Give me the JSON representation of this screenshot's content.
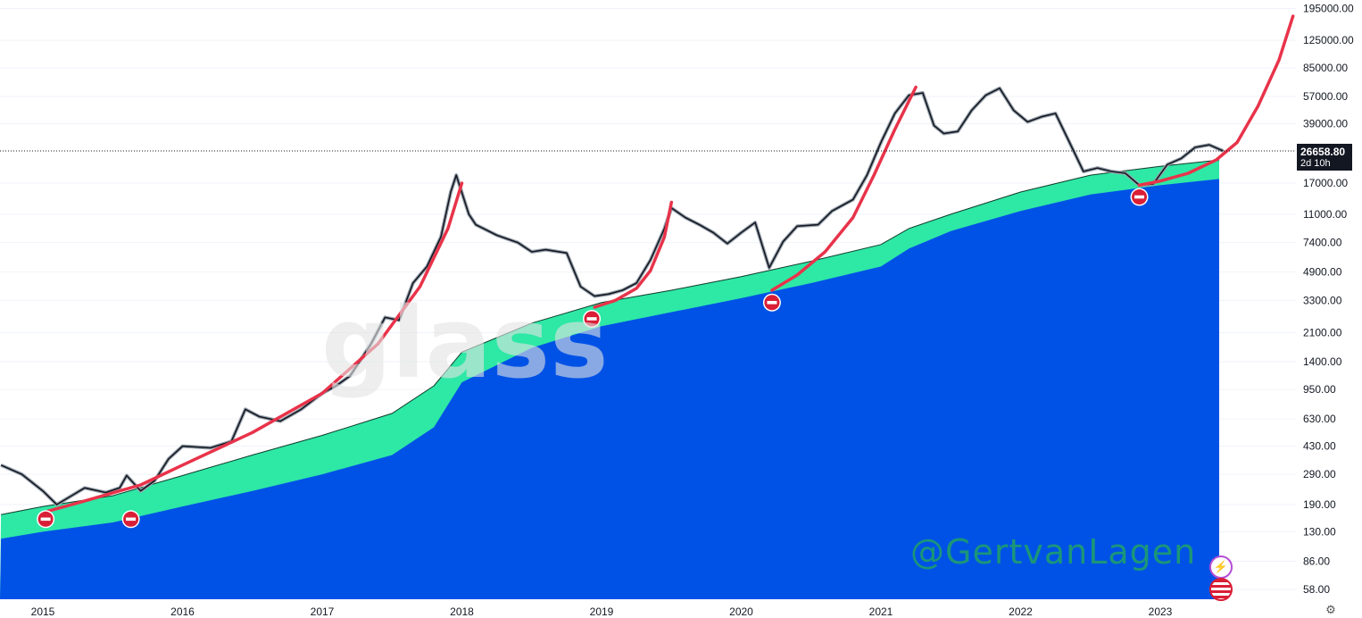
{
  "chart_data": {
    "type": "line",
    "y_scale": "log",
    "y_ticks": [
      "195000.00",
      "125000.00",
      "85000.00",
      "57000.00",
      "39000.00",
      "17000.00",
      "11000.00",
      "7400.00",
      "4900.00",
      "3300.00",
      "2100.00",
      "1400.00",
      "950.00",
      "630.00",
      "430.00",
      "290.00",
      "190.00",
      "130.00",
      "86.00",
      "58.00"
    ],
    "x_ticks": [
      "2015",
      "2016",
      "2017",
      "2018",
      "2019",
      "2020",
      "2021",
      "2022",
      "2023"
    ],
    "last_price": "26658.80",
    "last_price_sub": "2d 10h",
    "series": [
      {
        "type": "price",
        "color": "#131722",
        "points": [
          [
            2014.7,
            330
          ],
          [
            2014.85,
            290
          ],
          [
            2015.0,
            230
          ],
          [
            2015.1,
            190
          ],
          [
            2015.3,
            240
          ],
          [
            2015.45,
            225
          ],
          [
            2015.55,
            240
          ],
          [
            2015.6,
            285
          ],
          [
            2015.7,
            230
          ],
          [
            2015.8,
            265
          ],
          [
            2015.9,
            360
          ],
          [
            2016.0,
            430
          ],
          [
            2016.2,
            420
          ],
          [
            2016.35,
            460
          ],
          [
            2016.45,
            720
          ],
          [
            2016.55,
            650
          ],
          [
            2016.7,
            610
          ],
          [
            2016.85,
            720
          ],
          [
            2017.0,
            900
          ],
          [
            2017.1,
            1000
          ],
          [
            2017.2,
            1150
          ],
          [
            2017.35,
            1800
          ],
          [
            2017.45,
            2600
          ],
          [
            2017.55,
            2500
          ],
          [
            2017.65,
            4200
          ],
          [
            2017.75,
            5300
          ],
          [
            2017.85,
            8000
          ],
          [
            2017.92,
            15000
          ],
          [
            2017.96,
            19000
          ],
          [
            2018.05,
            11000
          ],
          [
            2018.1,
            9500
          ],
          [
            2018.25,
            8200
          ],
          [
            2018.4,
            7400
          ],
          [
            2018.5,
            6500
          ],
          [
            2018.6,
            6700
          ],
          [
            2018.75,
            6400
          ],
          [
            2018.85,
            4000
          ],
          [
            2018.95,
            3500
          ],
          [
            2019.05,
            3600
          ],
          [
            2019.15,
            3800
          ],
          [
            2019.25,
            4200
          ],
          [
            2019.35,
            5800
          ],
          [
            2019.45,
            9000
          ],
          [
            2019.5,
            12000
          ],
          [
            2019.6,
            10500
          ],
          [
            2019.7,
            9500
          ],
          [
            2019.8,
            8500
          ],
          [
            2019.9,
            7300
          ],
          [
            2020.0,
            8500
          ],
          [
            2020.1,
            9800
          ],
          [
            2020.2,
            5200
          ],
          [
            2020.3,
            7500
          ],
          [
            2020.4,
            9300
          ],
          [
            2020.55,
            9500
          ],
          [
            2020.65,
            11500
          ],
          [
            2020.8,
            13500
          ],
          [
            2020.9,
            19000
          ],
          [
            2021.0,
            30000
          ],
          [
            2021.1,
            45000
          ],
          [
            2021.2,
            58000
          ],
          [
            2021.3,
            60000
          ],
          [
            2021.38,
            38000
          ],
          [
            2021.45,
            34000
          ],
          [
            2021.55,
            35000
          ],
          [
            2021.65,
            47000
          ],
          [
            2021.75,
            58000
          ],
          [
            2021.85,
            64000
          ],
          [
            2021.95,
            47000
          ],
          [
            2022.05,
            40000
          ],
          [
            2022.15,
            43000
          ],
          [
            2022.25,
            45000
          ],
          [
            2022.35,
            30000
          ],
          [
            2022.45,
            20000
          ],
          [
            2022.55,
            21000
          ],
          [
            2022.65,
            20000
          ],
          [
            2022.75,
            19500
          ],
          [
            2022.85,
            16500
          ],
          [
            2022.95,
            16800
          ],
          [
            2023.05,
            22000
          ],
          [
            2023.15,
            24000
          ],
          [
            2023.25,
            28000
          ],
          [
            2023.35,
            29000
          ],
          [
            2023.45,
            26658
          ]
        ]
      },
      {
        "type": "band-upper",
        "color": "#2ee8a5",
        "points": [
          [
            2014.7,
            165
          ],
          [
            2015.0,
            185
          ],
          [
            2015.5,
            215
          ],
          [
            2016.0,
            285
          ],
          [
            2016.5,
            380
          ],
          [
            2017.0,
            500
          ],
          [
            2017.5,
            680
          ],
          [
            2017.8,
            1000
          ],
          [
            2018.0,
            1600
          ],
          [
            2018.5,
            2400
          ],
          [
            2019.0,
            3200
          ],
          [
            2019.5,
            3800
          ],
          [
            2020.0,
            4600
          ],
          [
            2020.5,
            5700
          ],
          [
            2021.0,
            7200
          ],
          [
            2021.2,
            9000
          ],
          [
            2021.5,
            11000
          ],
          [
            2022.0,
            15000
          ],
          [
            2022.5,
            19000
          ],
          [
            2023.0,
            21500
          ],
          [
            2023.45,
            23500
          ]
        ]
      },
      {
        "type": "band-lower",
        "color": "#0052e6",
        "points": [
          [
            2014.7,
            118
          ],
          [
            2015.0,
            130
          ],
          [
            2015.5,
            148
          ],
          [
            2016.0,
            185
          ],
          [
            2016.5,
            230
          ],
          [
            2017.0,
            290
          ],
          [
            2017.5,
            380
          ],
          [
            2017.8,
            560
          ],
          [
            2018.0,
            1050
          ],
          [
            2018.5,
            1700
          ],
          [
            2019.0,
            2300
          ],
          [
            2019.5,
            2800
          ],
          [
            2020.0,
            3400
          ],
          [
            2020.5,
            4200
          ],
          [
            2021.0,
            5300
          ],
          [
            2021.2,
            6800
          ],
          [
            2021.5,
            8700
          ],
          [
            2022.0,
            11500
          ],
          [
            2022.5,
            14500
          ],
          [
            2023.0,
            16500
          ],
          [
            2023.45,
            18000
          ]
        ]
      },
      {
        "type": "curve",
        "color": "#e8334a",
        "points": [
          [
            2015.0,
            170
          ],
          [
            2015.3,
            200
          ],
          [
            2015.7,
            250
          ],
          [
            2016.0,
            330
          ],
          [
            2016.5,
            520
          ],
          [
            2017.0,
            900
          ],
          [
            2017.4,
            1800
          ],
          [
            2017.7,
            4000
          ],
          [
            2017.9,
            9000
          ],
          [
            2018.0,
            17000
          ]
        ]
      },
      {
        "type": "curve",
        "color": "#e8334a",
        "points": [
          [
            2018.95,
            3000
          ],
          [
            2019.1,
            3300
          ],
          [
            2019.25,
            3900
          ],
          [
            2019.35,
            5000
          ],
          [
            2019.45,
            8000
          ],
          [
            2019.5,
            13000
          ]
        ]
      },
      {
        "type": "curve",
        "color": "#e8334a",
        "points": [
          [
            2020.22,
            3800
          ],
          [
            2020.4,
            4700
          ],
          [
            2020.6,
            6500
          ],
          [
            2020.8,
            10500
          ],
          [
            2020.95,
            19000
          ],
          [
            2021.1,
            36000
          ],
          [
            2021.25,
            65000
          ]
        ]
      },
      {
        "type": "curve",
        "color": "#e8334a",
        "points": [
          [
            2022.85,
            16500
          ],
          [
            2023.0,
            17500
          ],
          [
            2023.2,
            19500
          ],
          [
            2023.4,
            23500
          ],
          [
            2023.55,
            30000
          ],
          [
            2023.7,
            50000
          ],
          [
            2023.85,
            95000
          ],
          [
            2023.95,
            185000
          ]
        ]
      }
    ],
    "markers": [
      {
        "x": 2015.02,
        "y": 155,
        "icon": "no-entry-icon"
      },
      {
        "x": 2015.63,
        "y": 155,
        "icon": "no-entry-icon"
      },
      {
        "x": 2018.93,
        "y": 2550,
        "icon": "no-entry-icon"
      },
      {
        "x": 2020.22,
        "y": 3200,
        "icon": "no-entry-icon"
      },
      {
        "x": 2022.85,
        "y": 14000,
        "icon": "no-entry-icon"
      }
    ],
    "colors": {
      "price": "#131722",
      "band_upper": "#2ee8a5",
      "band_lower": "#0052e6",
      "curve": "#e8334a",
      "marker": "#d91e36"
    }
  },
  "watermark": "@GertvanLagen",
  "ghost_logo": "glass",
  "icons": {
    "lightning": "lightning-icon",
    "flag": "us-flag-icon",
    "settings": "gear-icon"
  }
}
